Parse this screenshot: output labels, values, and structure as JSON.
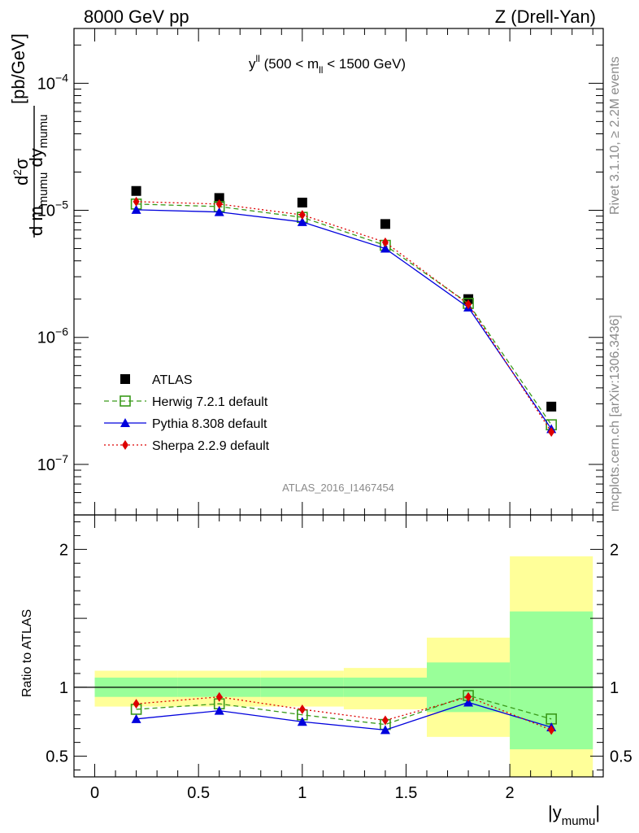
{
  "header": {
    "left": "8000 GeV pp",
    "right": "Z (Drell-Yan)"
  },
  "side_text": {
    "top": "Rivet 3.1.10, ≥ 2.2M events",
    "bottom": "mcplots.cern.ch [arXiv:1306.3436]"
  },
  "chart_data": [
    {
      "type": "scatter",
      "title": "y^{ll} (500 < m_{ll} < 1500 GeV)",
      "ylabel": "d²σ / d m_mumu dy_mumu [pb/GeV]",
      "watermark": "ATLAS_2016_I1467454",
      "xlim": [
        -0.1,
        2.45
      ],
      "ylim": [
        4e-08,
        0.00027
      ],
      "yscale": "log",
      "yticks": [
        {
          "value": 1e-07,
          "base": "10",
          "exp": "−7"
        },
        {
          "value": 1e-06,
          "base": "10",
          "exp": "−6"
        },
        {
          "value": 1e-05,
          "base": "10",
          "exp": "−5"
        },
        {
          "value": 0.0001,
          "base": "10",
          "exp": "−4"
        }
      ],
      "x": [
        0.2,
        0.6,
        1.0,
        1.4,
        1.8,
        2.2
      ],
      "series": [
        {
          "name": "ATLAS",
          "color": "#000000",
          "marker": "square-filled",
          "line": "none",
          "values": [
            1.42e-05,
            1.25e-05,
            1.15e-05,
            7.8e-06,
            2e-06,
            2.85e-07
          ]
        },
        {
          "name": "Herwig 7.2.1 default",
          "color": "#3a9a1a",
          "marker": "square-open",
          "line": "dashed",
          "values": [
            1.12e-05,
            1.07e-05,
            8.8e-06,
            5.3e-06,
            1.85e-06,
            2.05e-07
          ]
        },
        {
          "name": "Pythia 8.308 default",
          "color": "#0000dd",
          "marker": "triangle",
          "line": "solid",
          "values": [
            1.01e-05,
            9.7e-06,
            8.1e-06,
            5e-06,
            1.72e-06,
            1.9e-07
          ]
        },
        {
          "name": "Sherpa 2.2.9 default",
          "color": "#dd0000",
          "marker": "diamond",
          "line": "dotted",
          "values": [
            1.17e-05,
            1.12e-05,
            9.2e-06,
            5.6e-06,
            1.82e-06,
            1.8e-07
          ]
        }
      ],
      "legend": "bottom-left"
    },
    {
      "type": "scatter",
      "ylabel": "Ratio to ATLAS",
      "xlabel": "|y_mumu|",
      "xlim": [
        -0.1,
        2.45
      ],
      "ylim": [
        0.35,
        2.25
      ],
      "xticks": [
        "0",
        "0.5",
        "1",
        "1.5",
        "2"
      ],
      "yticks": [
        "0.5",
        "1",
        "2"
      ],
      "reference_line": 1,
      "bins": [
        {
          "lo": 0.0,
          "hi": 0.4,
          "yellow": [
            0.86,
            1.12
          ],
          "green": [
            0.93,
            1.07
          ]
        },
        {
          "lo": 0.4,
          "hi": 0.8,
          "yellow": [
            0.86,
            1.12
          ],
          "green": [
            0.93,
            1.07
          ]
        },
        {
          "lo": 0.8,
          "hi": 1.2,
          "yellow": [
            0.86,
            1.12
          ],
          "green": [
            0.93,
            1.07
          ]
        },
        {
          "lo": 1.2,
          "hi": 1.6,
          "yellow": [
            0.84,
            1.14
          ],
          "green": [
            0.93,
            1.07
          ]
        },
        {
          "lo": 1.6,
          "hi": 2.0,
          "yellow": [
            0.64,
            1.36
          ],
          "green": [
            0.82,
            1.18
          ]
        },
        {
          "lo": 2.0,
          "hi": 2.4,
          "yellow": [
            0.35,
            1.95
          ],
          "green": [
            0.55,
            1.55
          ]
        }
      ],
      "x": [
        0.2,
        0.6,
        1.0,
        1.4,
        1.8,
        2.2
      ],
      "series": [
        {
          "name": "Herwig 7.2.1 default",
          "color": "#3a9a1a",
          "marker": "square-open",
          "line": "dashed",
          "values": [
            0.84,
            0.88,
            0.8,
            0.73,
            0.94,
            0.77
          ]
        },
        {
          "name": "Pythia 8.308 default",
          "color": "#0000dd",
          "marker": "triangle",
          "line": "solid",
          "values": [
            0.77,
            0.83,
            0.75,
            0.69,
            0.89,
            0.71
          ]
        },
        {
          "name": "Sherpa 2.2.9 default",
          "color": "#dd0000",
          "marker": "diamond",
          "line": "dotted",
          "values": [
            0.88,
            0.93,
            0.84,
            0.76,
            0.93,
            0.69
          ]
        }
      ]
    }
  ]
}
